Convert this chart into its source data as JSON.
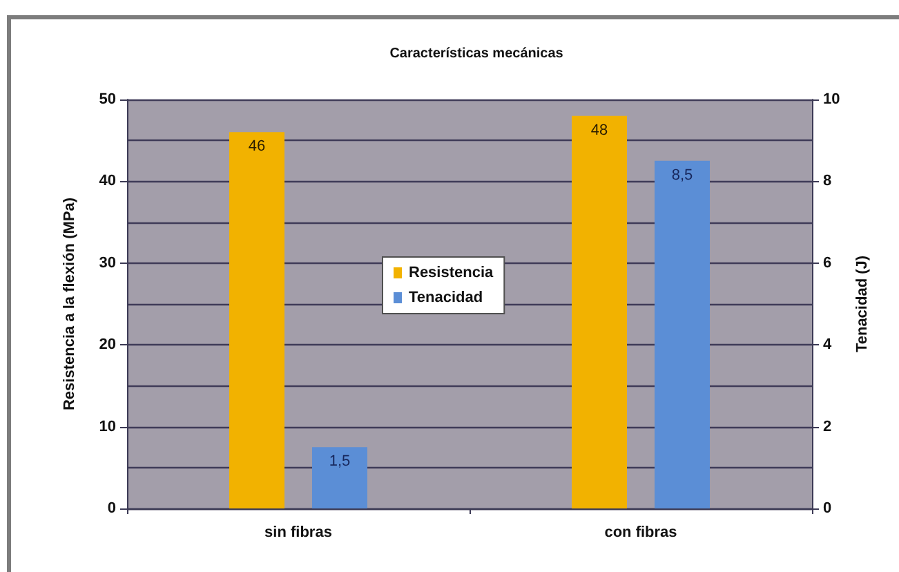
{
  "chart_data": {
    "type": "bar",
    "title": "Características mecánicas",
    "categories": [
      "sin fibras",
      "con fibras"
    ],
    "series": [
      {
        "name": "Resistencia",
        "color": "#f2b200",
        "values": [
          46,
          48
        ],
        "value_labels": [
          "46",
          "48"
        ]
      },
      {
        "name": "Tenacidad",
        "color": "#5b8ed6",
        "values": [
          1.5,
          8.5
        ],
        "value_labels": [
          "1,5",
          "8,5"
        ],
        "axis": "y2"
      }
    ],
    "ylabel": "Resistencia a la flexión (MPa)",
    "y2label": "Tenacidad (J)",
    "ylim": [
      0,
      50
    ],
    "yticks": [
      0,
      10,
      20,
      30,
      40,
      50
    ],
    "y2lim": [
      0,
      10
    ],
    "y2ticks": [
      0,
      2,
      4,
      6,
      8,
      10
    ],
    "grid": "y",
    "legend": "center"
  }
}
